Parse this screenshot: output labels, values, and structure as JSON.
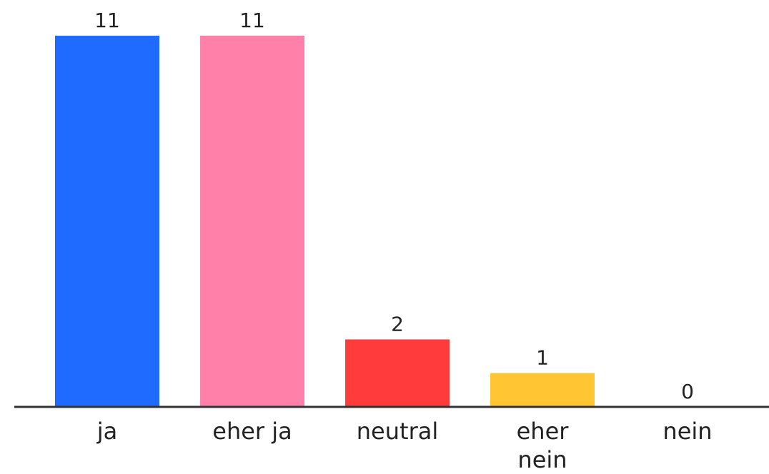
{
  "chart_data": {
    "type": "bar",
    "categories": [
      [
        "ja"
      ],
      [
        "eher ja"
      ],
      [
        "neutral"
      ],
      [
        "eher",
        "nein"
      ],
      [
        "nein"
      ]
    ],
    "values": [
      11,
      11,
      2,
      1,
      0
    ],
    "value_labels": [
      "11",
      "11",
      "2",
      "1",
      "0"
    ],
    "colors": [
      "#1f6bff",
      "#ff80a8",
      "#ff3b3b",
      "#ffc533",
      "#ffffff"
    ],
    "axis_color": "#333333",
    "title": "",
    "xlabel": "",
    "ylabel": "",
    "ylim": [
      0,
      11
    ],
    "grid": false,
    "legend": "none"
  }
}
